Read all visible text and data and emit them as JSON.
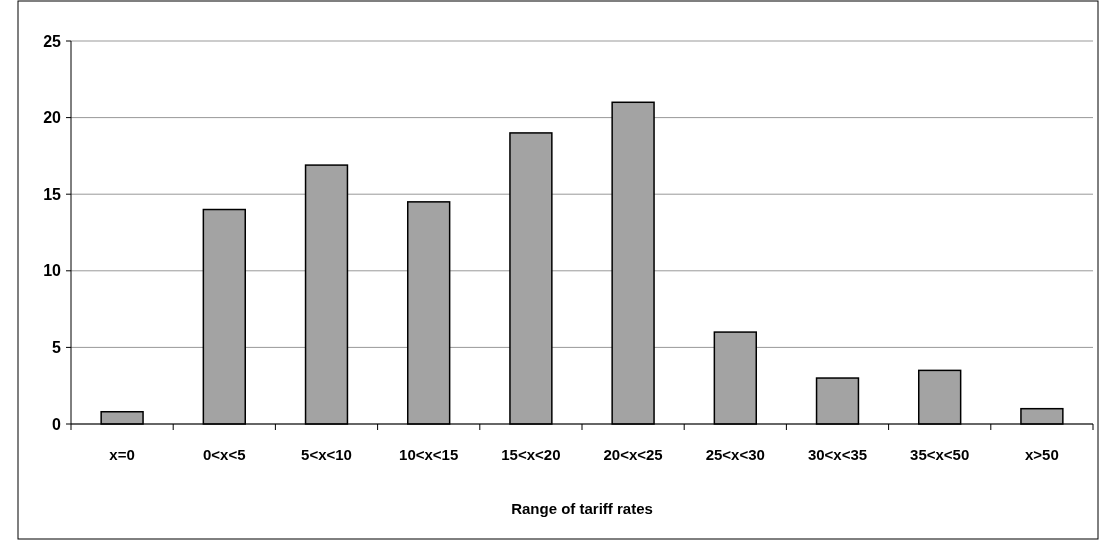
{
  "chart_data": {
    "type": "bar",
    "xlabel": "Range of tariff rates",
    "categories": [
      "x=0",
      "0<x<5",
      "5<x<10",
      "10<x<15",
      "15<x<20",
      "20<x<25",
      "25<x<30",
      "30<x<35",
      "35<x<50",
      "x>50"
    ],
    "values": [
      0.8,
      14,
      16.9,
      14.5,
      19,
      21,
      6,
      3,
      3.5,
      1
    ],
    "color": "#a3a3a3",
    "ylim": [
      0,
      25
    ],
    "yticks": [
      0,
      5,
      10,
      15,
      20,
      25
    ],
    "grid": "y"
  }
}
